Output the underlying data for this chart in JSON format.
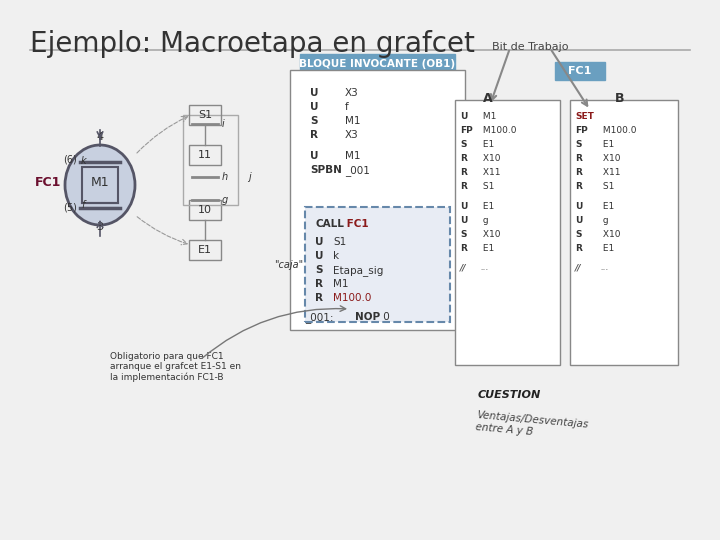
{
  "title": "Ejemplo: Macroetapa en grafcet",
  "bg_color": "#f0f0f0",
  "title_color": "#333333",
  "fc1_label_color": "#6b0f2e",
  "ob1_box_color": "#6a9fc0",
  "fc1_box_color": "#6a9fc0",
  "bit_trabajo_text": "Bit de Trabajo",
  "ob1_label": "BLOQUE INVOCANTE (OB1)",
  "fc1_label": "FC1",
  "col_a_label": "A",
  "col_b_label": "B",
  "col_a_lines": [
    [
      "U",
      " M1"
    ],
    [
      "FP",
      " M100.0"
    ],
    [
      "S",
      " E1"
    ],
    [
      "R",
      " X10"
    ],
    [
      "R",
      " X11"
    ],
    [
      "R",
      " S1"
    ],
    [
      "",
      ""
    ],
    [
      "U",
      " E1"
    ],
    [
      "U",
      " g"
    ],
    [
      "S",
      " X10"
    ],
    [
      "R",
      " E1"
    ],
    [
      "",
      ""
    ],
    [
      "//",
      "..."
    ]
  ],
  "col_b_lines": [
    [
      "SET",
      ""
    ],
    [
      "FP",
      " M100.0"
    ],
    [
      "S",
      " E1"
    ],
    [
      "R",
      " X10"
    ],
    [
      "R",
      " X11"
    ],
    [
      "R",
      " S1"
    ],
    [
      "",
      ""
    ],
    [
      "U",
      " E1"
    ],
    [
      "U",
      " g"
    ],
    [
      "S",
      " X10"
    ],
    [
      "R",
      " E1"
    ],
    [
      "",
      ""
    ],
    [
      "//",
      "..."
    ]
  ],
  "ob1_code_lines": [
    [
      "U",
      "X3"
    ],
    [
      "U",
      "f"
    ],
    [
      "S",
      "M1"
    ],
    [
      "R",
      "X3"
    ],
    [
      "",
      ""
    ],
    [
      "U",
      "M1"
    ],
    [
      "SPBN",
      "_001"
    ]
  ],
  "caja_lines": [
    [
      "CALL",
      " FC1"
    ],
    [
      "",
      ""
    ],
    [
      "U",
      " S1"
    ],
    [
      "U",
      " k"
    ],
    [
      "S",
      " Etapa_sig"
    ],
    [
      "R",
      " M1"
    ],
    [
      "R",
      " M100.0"
    ]
  ],
  "caja_label": "\"caja\"",
  "nop_line": [
    "_001:",
    "    NOP 0"
  ],
  "obligatorio_text": "Obligatorio para que FC1\narranque el grafcet E1-S1 en\nla implementación FC1-B",
  "cuestion_text": "CUESTION\nVentajas/Desventajas\nentre A y B"
}
